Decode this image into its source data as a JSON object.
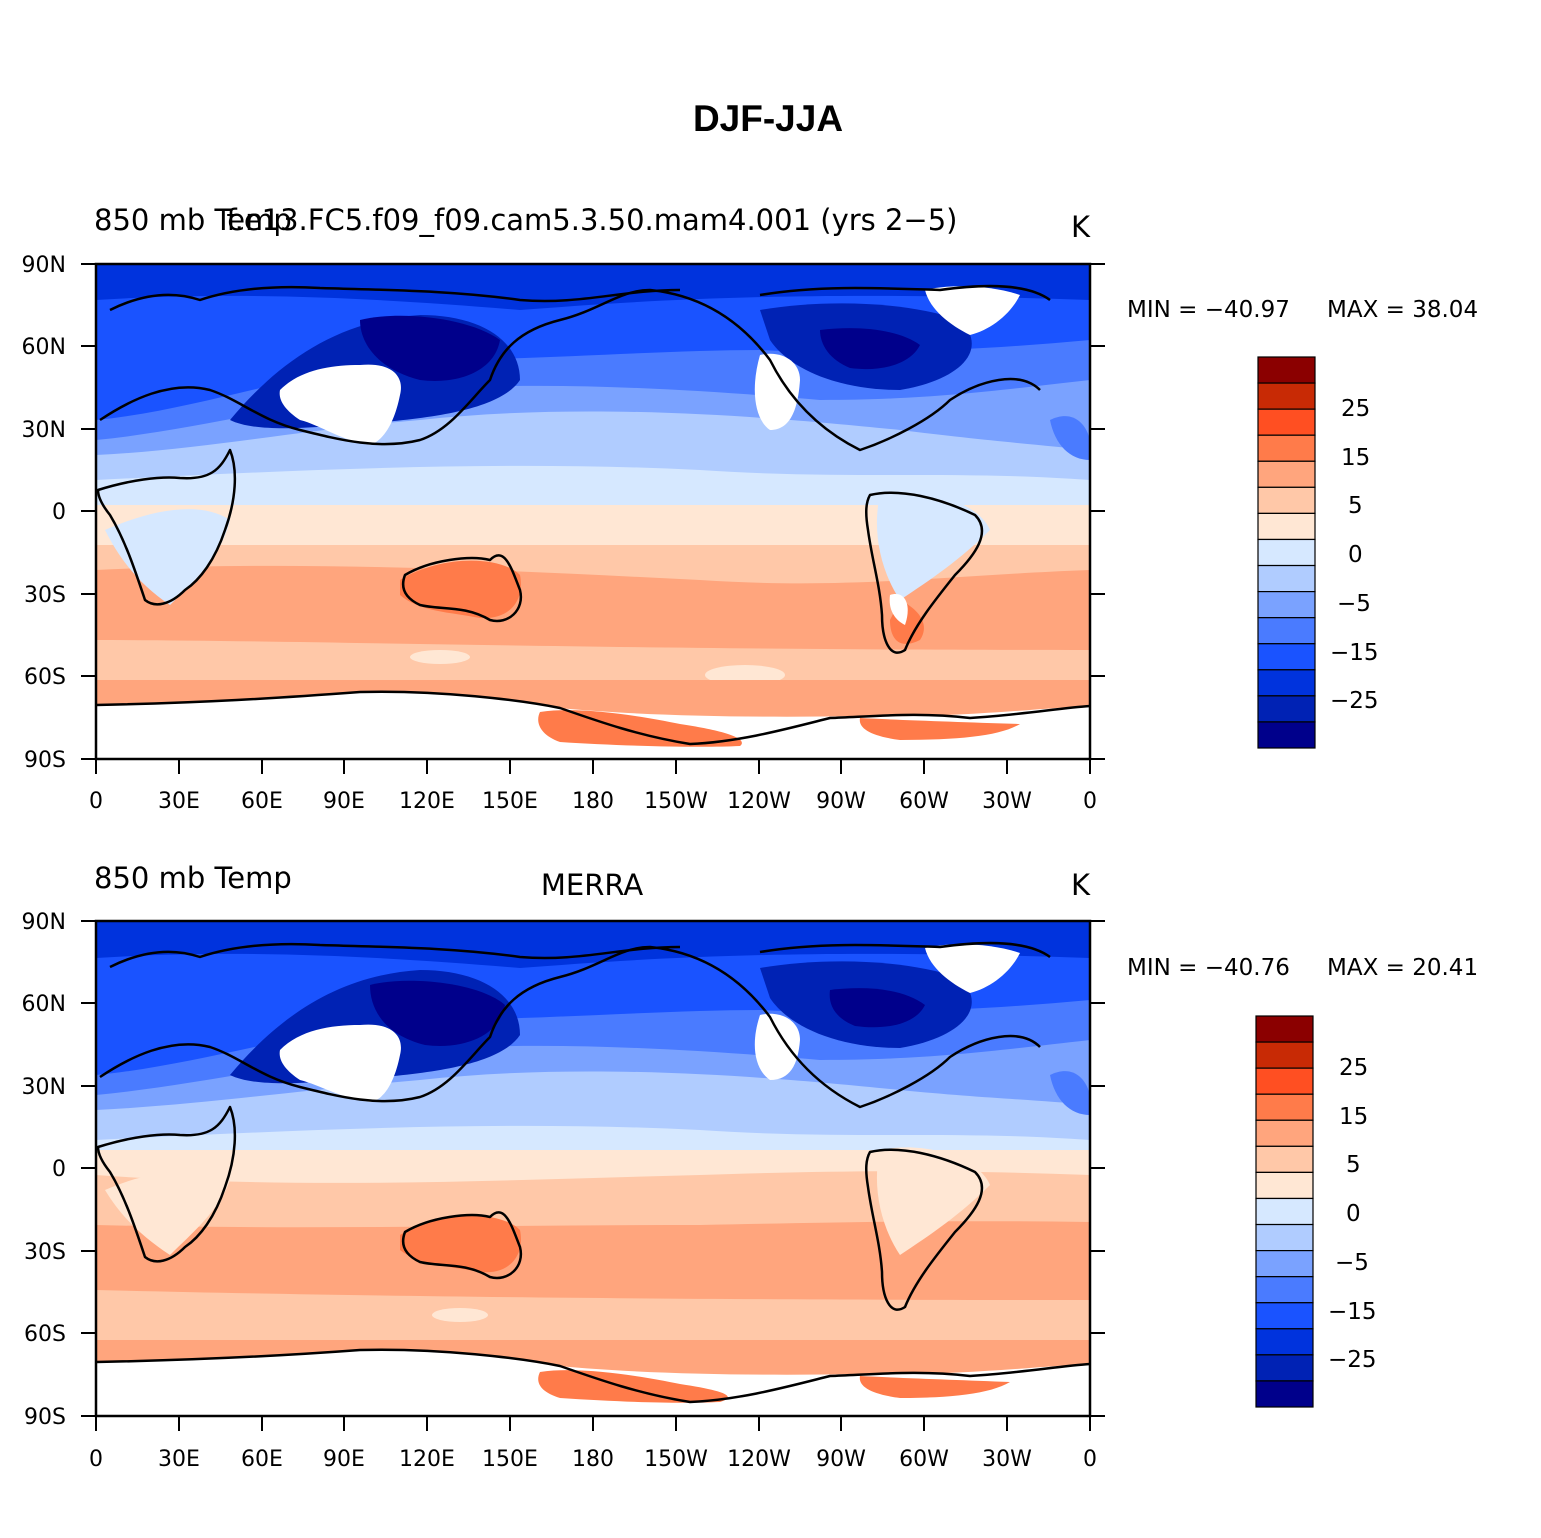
{
  "title": "DJF-JJA",
  "colors": [
    "#00008b",
    "#0022b4",
    "#0033dd",
    "#1a53ff",
    "#4a7bff",
    "#7aa2ff",
    "#b0ccff",
    "#d6e8ff",
    "#ffe7d4",
    "#ffc8a8",
    "#ffa57d",
    "#ff7b4a",
    "#ff4f22",
    "#c82a05",
    "#8b0000"
  ],
  "colorbar_labels": [
    "25",
    "15",
    "5",
    "0",
    "−5",
    "−15",
    "−25"
  ],
  "x_ticks": [
    "0",
    "30E",
    "60E",
    "90E",
    "120E",
    "150E",
    "180",
    "150W",
    "120W",
    "90W",
    "60W",
    "30W",
    "0"
  ],
  "y_ticks": [
    "90N",
    "60N",
    "30N",
    "0",
    "30S",
    "60S",
    "90S"
  ],
  "panels": [
    {
      "left_title": "850 mb Temp",
      "center_title": "f.e13.FC5.f09_f09.cam5.3.50.mam4.001 (yrs 2−5)",
      "units": "K",
      "min_label": "MIN = −40.97",
      "max_label": "MAX =   38.04"
    },
    {
      "left_title": "850 mb Temp",
      "center_title": "MERRA",
      "units": "K",
      "min_label": "MIN = −40.76",
      "max_label": "MAX =   20.41"
    }
  ],
  "chart_data": {
    "type": "heatmap",
    "variable": "850 mb Temp",
    "units": "K",
    "season": "DJF-JJA",
    "xlim": [
      0,
      360
    ],
    "ylim": [
      -90,
      90
    ],
    "contour_levels": [
      -35,
      -30,
      -25,
      -20,
      -15,
      -10,
      -5,
      0,
      5,
      10,
      15,
      20,
      25,
      30
    ],
    "panels": [
      {
        "dataset": "f.e13.FC5.f09_f09.cam5.3.50.mam4.001 (yrs 2−5)",
        "min": -40.97,
        "max": 38.04
      },
      {
        "dataset": "MERRA",
        "min": -40.76,
        "max": 20.41
      }
    ]
  }
}
